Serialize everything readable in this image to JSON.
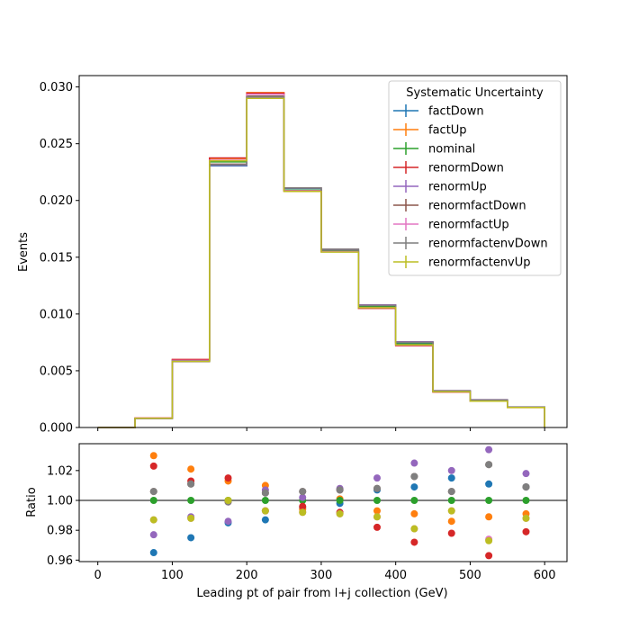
{
  "chart_data": [
    {
      "type": "line",
      "subtype": "step-histogram",
      "ylabel": "Events",
      "xlim": [
        -25,
        630
      ],
      "ylim": [
        0,
        0.031
      ],
      "xticks": [
        0,
        100,
        200,
        300,
        400,
        500,
        600
      ],
      "yticks": [
        "0.000",
        "0.005",
        "0.010",
        "0.015",
        "0.020",
        "0.025",
        "0.030"
      ],
      "bin_edges": [
        0,
        50,
        100,
        150,
        200,
        250,
        300,
        350,
        400,
        450,
        500,
        550,
        600
      ],
      "legend": {
        "title": "Systematic Uncertainty",
        "placement": "top-right"
      },
      "series": [
        {
          "name": "factDown",
          "color": "#1f77b4",
          "values": [
            0.0,
            0.0008,
            0.00585,
            0.02305,
            0.0291,
            0.02105,
            0.01565,
            0.0107,
            0.00745,
            0.0032,
            0.0024,
            0.0018
          ]
        },
        {
          "name": "factUp",
          "color": "#ff7f0e",
          "values": [
            0.0,
            0.00082,
            0.00595,
            0.0237,
            0.0295,
            0.0208,
            0.0155,
            0.01055,
            0.00725,
            0.00315,
            0.00235,
            0.00175
          ]
        },
        {
          "name": "nominal",
          "color": "#2ca02c",
          "values": [
            0.0,
            0.00081,
            0.0059,
            0.0234,
            0.02915,
            0.0209,
            0.01555,
            0.01065,
            0.00735,
            0.00318,
            0.00238,
            0.00178
          ]
        },
        {
          "name": "renormDown",
          "color": "#d62728",
          "values": [
            0.0,
            0.00083,
            0.006,
            0.02375,
            0.02945,
            0.02085,
            0.0155,
            0.0105,
            0.0072,
            0.00312,
            0.00232,
            0.00176
          ]
        },
        {
          "name": "renormUp",
          "color": "#9467bd",
          "values": [
            0.0,
            0.00079,
            0.0058,
            0.0231,
            0.02905,
            0.0211,
            0.0157,
            0.0108,
            0.00755,
            0.00325,
            0.00245,
            0.00181
          ]
        },
        {
          "name": "renormfactDown",
          "color": "#8c564b",
          "values": [
            0.0,
            0.0008,
            0.00588,
            0.0232,
            0.0292,
            0.0211,
            0.0157,
            0.01075,
            0.0075,
            0.00322,
            0.00242,
            0.0018
          ]
        },
        {
          "name": "renormfactUp",
          "color": "#e377c2",
          "values": [
            0.0,
            0.00082,
            0.00592,
            0.02355,
            0.02935,
            0.02085,
            0.0155,
            0.01055,
            0.00725,
            0.00316,
            0.00236,
            0.00177
          ]
        },
        {
          "name": "renormfactenvDown",
          "color": "#7f7f7f",
          "values": [
            0.0,
            0.0008,
            0.00586,
            0.02315,
            0.02915,
            0.0211,
            0.0157,
            0.01075,
            0.0075,
            0.00322,
            0.00242,
            0.0018
          ]
        },
        {
          "name": "renormfactenvUp",
          "color": "#bcbd22",
          "values": [
            0.0,
            0.00081,
            0.00582,
            0.0235,
            0.029,
            0.0208,
            0.01545,
            0.01055,
            0.00728,
            0.00315,
            0.00232,
            0.00176
          ]
        }
      ]
    },
    {
      "type": "scatter",
      "xlabel": "Leading pt of pair from l+j collection (GeV)",
      "ylabel": "Ratio",
      "xlim": [
        -25,
        630
      ],
      "ylim": [
        0.959,
        1.038
      ],
      "xticks": [
        0,
        100,
        200,
        300,
        400,
        500,
        600
      ],
      "yticks": [
        "0.96",
        "0.98",
        "1.00",
        "1.02"
      ],
      "reference_line": 1.0,
      "x": [
        75,
        125,
        175,
        225,
        275,
        325,
        375,
        425,
        475,
        525,
        575
      ],
      "series": [
        {
          "name": "factDown",
          "color": "#1f77b4",
          "values": [
            0.965,
            0.975,
            0.985,
            0.987,
            0.995,
            0.998,
            1.007,
            1.009,
            1.015,
            1.011,
            1.009
          ]
        },
        {
          "name": "factUp",
          "color": "#ff7f0e",
          "values": [
            1.03,
            1.021,
            1.013,
            1.01,
            0.994,
            1.001,
            0.993,
            0.991,
            0.986,
            0.989,
            0.991
          ]
        },
        {
          "name": "nominal",
          "color": "#2ca02c",
          "values": [
            1.0,
            1.0,
            1.0,
            1.0,
            1.0,
            1.0,
            1.0,
            1.0,
            1.0,
            1.0,
            1.0
          ]
        },
        {
          "name": "renormDown",
          "color": "#d62728",
          "values": [
            1.023,
            1.013,
            1.015,
            0.993,
            0.996,
            0.992,
            0.982,
            0.972,
            0.978,
            0.963,
            0.979
          ]
        },
        {
          "name": "renormUp",
          "color": "#9467bd",
          "values": [
            0.977,
            0.989,
            0.986,
            1.007,
            1.002,
            1.008,
            1.015,
            1.025,
            1.02,
            1.034,
            1.018
          ]
        },
        {
          "name": "renormfactDown",
          "color": "#8c564b",
          "values": [
            1.006,
            1.011,
            0.999,
            1.005,
            1.006,
            1.007,
            1.008,
            1.016,
            1.006,
            1.024,
            1.009
          ]
        },
        {
          "name": "renormfactUp",
          "color": "#e377c2",
          "values": [
            0.987,
            0.988,
            0.999,
            0.993,
            0.992,
            0.991,
            0.989,
            0.981,
            0.993,
            0.974,
            0.988
          ]
        },
        {
          "name": "renormfactenvDown",
          "color": "#7f7f7f",
          "values": [
            1.006,
            1.011,
            0.999,
            1.005,
            1.006,
            1.007,
            1.008,
            1.016,
            1.006,
            1.024,
            1.009
          ]
        },
        {
          "name": "renormfactenvUp",
          "color": "#bcbd22",
          "values": [
            0.987,
            0.988,
            1.0,
            0.993,
            0.992,
            0.991,
            0.989,
            0.981,
            0.993,
            0.973,
            0.988
          ]
        }
      ]
    }
  ]
}
